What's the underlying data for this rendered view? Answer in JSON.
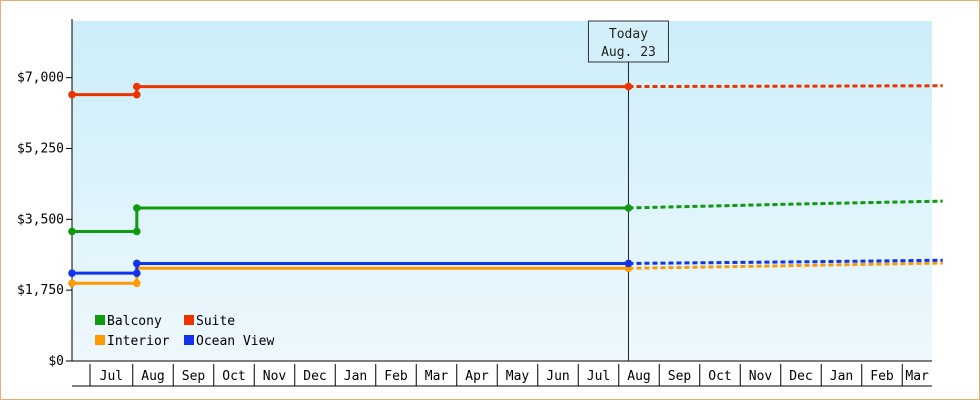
{
  "chart_data": {
    "type": "line",
    "title": "",
    "xlabel": "",
    "ylabel": "",
    "y_ticks": [
      "$0",
      "$1,750",
      "$3,500",
      "$5,250",
      "$7,000"
    ],
    "ylim": [
      0,
      8400
    ],
    "x_tick_labels": [
      "Jul",
      "Aug",
      "Sep",
      "Oct",
      "Nov",
      "Dec",
      "Jan",
      "Feb",
      "Mar",
      "Apr",
      "May",
      "Jun",
      "Jul",
      "Aug",
      "Sep",
      "Oct",
      "Nov",
      "Dec",
      "Jan",
      "Feb",
      "Mar"
    ],
    "x_tick_months": [
      -0.5,
      0.5,
      1.5,
      2.5,
      3.5,
      4.5,
      5.5,
      6.5,
      7.5,
      8.5,
      9.5,
      10.5,
      11.5,
      12.5,
      13.5,
      14.5,
      15.5,
      16.5,
      17.5,
      18.5,
      19.5
    ],
    "xlim_months": [
      -1.5,
      20.0
    ],
    "today_month": 12.24,
    "today_label": [
      "Today",
      "Aug. 23"
    ],
    "legend_position": "bottom-left",
    "grid": false,
    "colors": {
      "plot_bg_top": "#cceefa",
      "plot_bg_bottom": "#eef8fd"
    },
    "series": [
      {
        "name": "Balcony",
        "color": "#119911",
        "points": [
          [
            -1.5,
            3200
          ],
          [
            0.1,
            3200
          ],
          [
            0.1,
            3780
          ],
          [
            12.24,
            3780
          ]
        ],
        "markers": [
          [
            -1.5,
            3200
          ],
          [
            0.1,
            3200
          ],
          [
            0.1,
            3780
          ],
          [
            12.24,
            3780
          ]
        ],
        "projection": [
          [
            12.24,
            3780
          ],
          [
            13.0,
            3800
          ],
          [
            16.5,
            3880
          ],
          [
            20.0,
            3950
          ]
        ]
      },
      {
        "name": "Suite",
        "color": "#ee3300",
        "points": [
          [
            -1.5,
            6580
          ],
          [
            0.1,
            6580
          ],
          [
            0.1,
            6780
          ],
          [
            12.24,
            6780
          ]
        ],
        "markers": [
          [
            -1.5,
            6580
          ],
          [
            0.1,
            6580
          ],
          [
            0.1,
            6780
          ],
          [
            12.24,
            6780
          ]
        ],
        "projection": [
          [
            12.24,
            6780
          ],
          [
            16.5,
            6790
          ],
          [
            20.0,
            6800
          ]
        ]
      },
      {
        "name": "Interior",
        "color": "#ff9900",
        "points": [
          [
            -1.5,
            1920
          ],
          [
            0.1,
            1920
          ],
          [
            0.1,
            2290
          ],
          [
            12.24,
            2290
          ]
        ],
        "markers": [
          [
            -1.5,
            1920
          ],
          [
            0.1,
            1920
          ],
          [
            12.24,
            2290
          ]
        ],
        "projection": [
          [
            12.24,
            2290
          ],
          [
            16.5,
            2360
          ],
          [
            20.0,
            2420
          ]
        ]
      },
      {
        "name": "Ocean View",
        "color": "#1133ee",
        "points": [
          [
            -1.5,
            2170
          ],
          [
            0.1,
            2170
          ],
          [
            0.1,
            2410
          ],
          [
            12.24,
            2410
          ]
        ],
        "markers": [
          [
            -1.5,
            2170
          ],
          [
            0.1,
            2170
          ],
          [
            0.1,
            2410
          ],
          [
            12.24,
            2410
          ]
        ],
        "projection": [
          [
            12.24,
            2410
          ],
          [
            16.5,
            2450
          ],
          [
            20.0,
            2490
          ]
        ]
      }
    ],
    "legend": [
      {
        "label": "Balcony",
        "color": "#119911"
      },
      {
        "label": "Suite",
        "color": "#ee3300"
      },
      {
        "label": "Interior",
        "color": "#ff9900"
      },
      {
        "label": "Ocean View",
        "color": "#1133ee"
      }
    ]
  }
}
